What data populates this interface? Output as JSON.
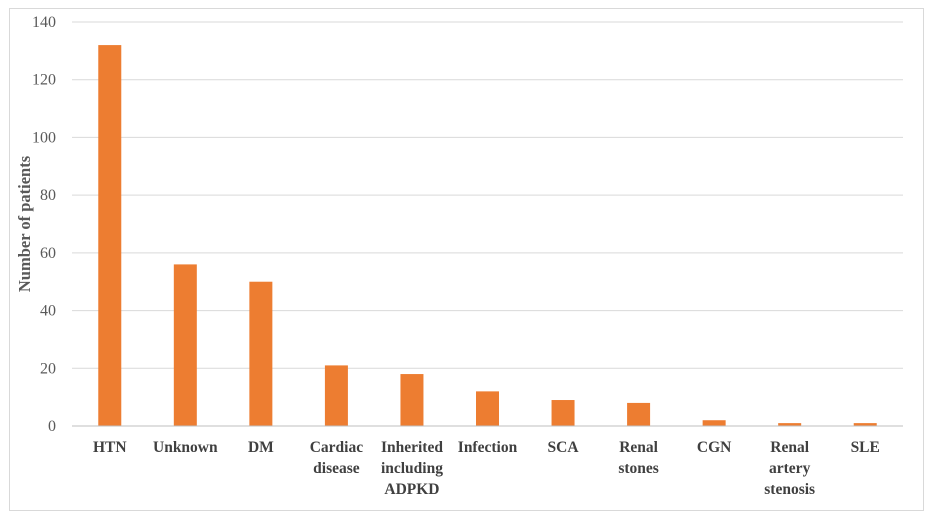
{
  "chart_data": {
    "type": "bar",
    "ylabel": "Number  of patients",
    "xlabel": "",
    "title": "",
    "ylim": [
      0,
      140
    ],
    "ytick_step": 20,
    "yticks": [
      "0",
      "20",
      "40",
      "60",
      "80",
      "100",
      "120",
      "140"
    ],
    "grid": true,
    "bar_color": "#ED7D31",
    "categories": [
      [
        "HTN"
      ],
      [
        "Unknown"
      ],
      [
        "DM"
      ],
      [
        "Cardiac",
        "disease"
      ],
      [
        "Inherited",
        "including",
        "ADPKD"
      ],
      [
        "Infection"
      ],
      [
        "SCA"
      ],
      [
        "Renal",
        "stones"
      ],
      [
        "CGN"
      ],
      [
        "Renal",
        "artery",
        "stenosis"
      ],
      [
        "SLE"
      ]
    ],
    "values": [
      132,
      56,
      50,
      21,
      18,
      12,
      9,
      8,
      2,
      1,
      1
    ]
  }
}
